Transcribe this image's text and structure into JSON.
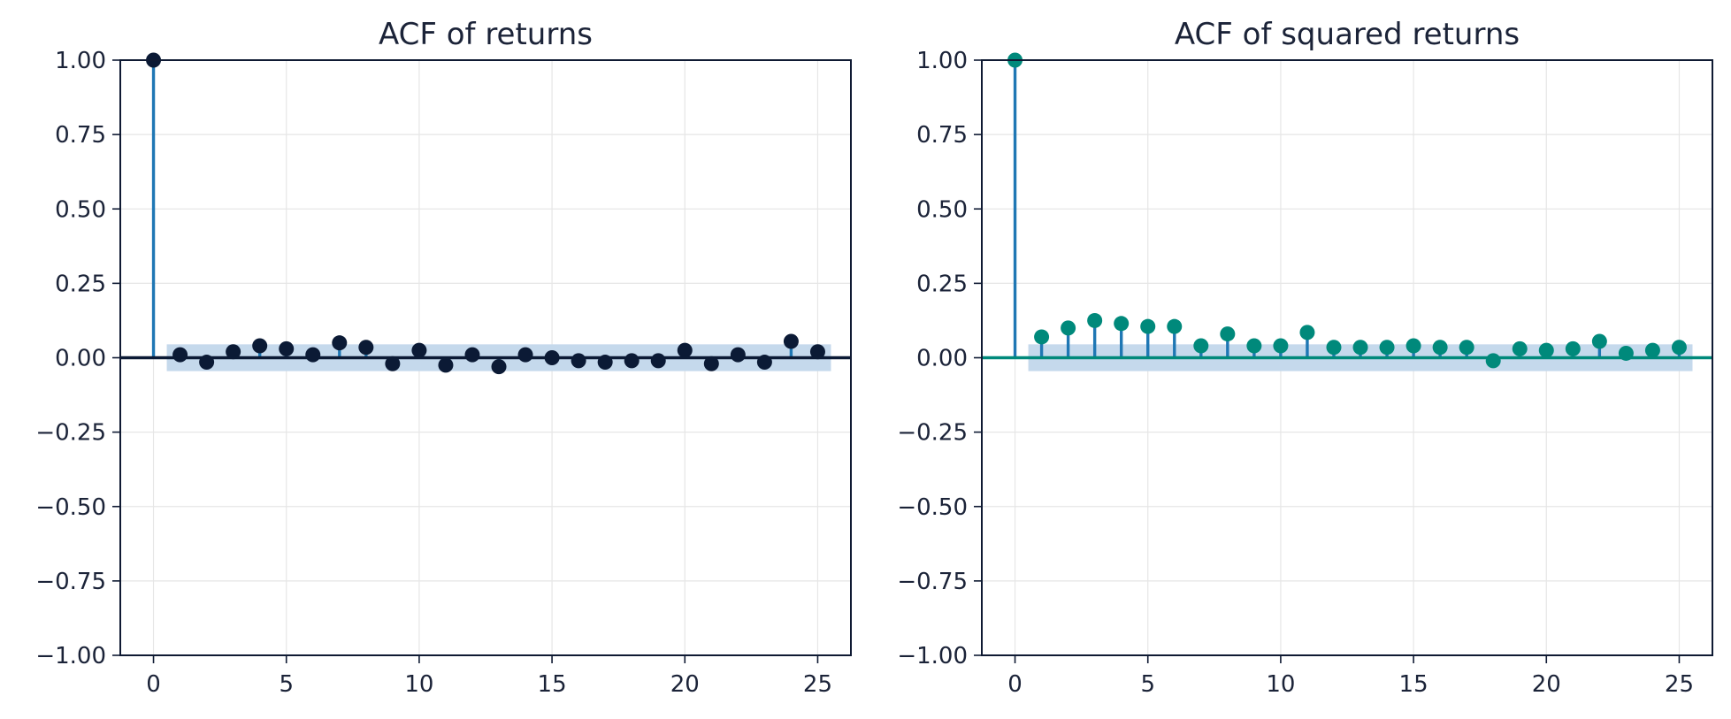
{
  "chart_data": [
    {
      "type": "stem",
      "title": "ACF of returns",
      "xlabel": "",
      "ylabel": "",
      "xlim": [
        -1.25,
        26.25
      ],
      "ylim": [
        -1.0,
        1.0
      ],
      "xticks": [
        0,
        5,
        10,
        15,
        20,
        25
      ],
      "xtick_labels": [
        "0",
        "5",
        "10",
        "15",
        "20",
        "25"
      ],
      "yticks": [
        1.0,
        0.75,
        0.5,
        0.25,
        0.0,
        -0.25,
        -0.5,
        -0.75,
        -1.0
      ],
      "ytick_labels": [
        "1.00",
        "0.75",
        "0.50",
        "0.25",
        "0.00",
        "−0.25",
        "−0.50",
        "−0.75",
        "−1.00"
      ],
      "grid": true,
      "lags": [
        0,
        1,
        2,
        3,
        4,
        5,
        6,
        7,
        8,
        9,
        10,
        11,
        12,
        13,
        14,
        15,
        16,
        17,
        18,
        19,
        20,
        21,
        22,
        23,
        24,
        25
      ],
      "values": [
        1.0,
        0.01,
        -0.015,
        0.02,
        0.04,
        0.03,
        0.01,
        0.05,
        0.035,
        -0.02,
        0.025,
        -0.025,
        0.01,
        -0.03,
        0.01,
        0.0,
        -0.01,
        -0.015,
        -0.01,
        -0.01,
        0.025,
        -0.02,
        0.01,
        -0.015,
        0.055,
        0.02
      ],
      "confidence_band": 0.045,
      "marker_color": "#0b1a35",
      "stem_color": "#1f77b4",
      "zero_line_color": "#0b1a35",
      "band_color": "#c5d9ec"
    },
    {
      "type": "stem",
      "title": "ACF of squared returns",
      "xlabel": "",
      "ylabel": "",
      "xlim": [
        -1.25,
        26.25
      ],
      "ylim": [
        -1.0,
        1.0
      ],
      "xticks": [
        0,
        5,
        10,
        15,
        20,
        25
      ],
      "xtick_labels": [
        "0",
        "5",
        "10",
        "15",
        "20",
        "25"
      ],
      "yticks": [
        1.0,
        0.75,
        0.5,
        0.25,
        0.0,
        -0.25,
        -0.5,
        -0.75,
        -1.0
      ],
      "ytick_labels": [
        "1.00",
        "0.75",
        "0.50",
        "0.25",
        "0.00",
        "−0.25",
        "−0.50",
        "−0.75",
        "−1.00"
      ],
      "grid": true,
      "lags": [
        0,
        1,
        2,
        3,
        4,
        5,
        6,
        7,
        8,
        9,
        10,
        11,
        12,
        13,
        14,
        15,
        16,
        17,
        18,
        19,
        20,
        21,
        22,
        23,
        24,
        25
      ],
      "values": [
        1.0,
        0.07,
        0.1,
        0.125,
        0.115,
        0.105,
        0.105,
        0.04,
        0.08,
        0.04,
        0.04,
        0.085,
        0.035,
        0.035,
        0.035,
        0.04,
        0.035,
        0.035,
        -0.01,
        0.03,
        0.025,
        0.03,
        0.055,
        0.015,
        0.025,
        0.035
      ],
      "confidence_band": 0.045,
      "marker_color": "#00897b",
      "stem_color": "#1f77b4",
      "zero_line_color": "#00897b",
      "band_color": "#c5d9ec"
    }
  ]
}
